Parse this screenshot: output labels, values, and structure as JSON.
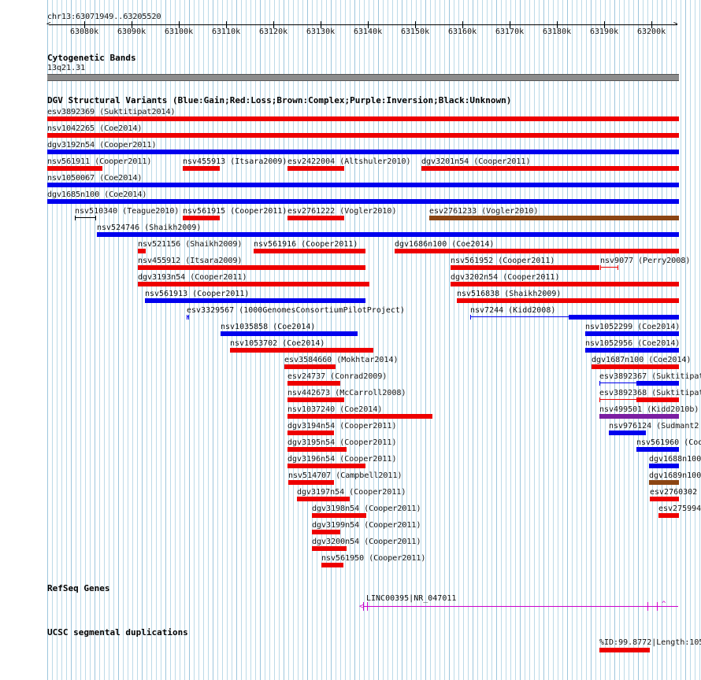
{
  "position_label": "chr13:63071949..63205520",
  "ruler": {
    "ticks": [
      "63080k",
      "63090k",
      "63100k",
      "63110k",
      "63120k",
      "63130k",
      "63140k",
      "63150k",
      "63160k",
      "63170k",
      "63180k",
      "63190k",
      "63200k"
    ],
    "start_bp": 63071949,
    "end_bp": 63205520
  },
  "cytobands": {
    "title": "Cytogenetic Bands",
    "band": "13q21.31"
  },
  "dgv": {
    "title": "DGV Structural Variants (Blue:Gain;Red:Loss;Brown:Complex;Purple:Inversion;Black:Unknown)",
    "colors": {
      "gain": "#0000ee",
      "loss": "#ee0000",
      "complex": "#8b4513",
      "inversion": "#7b1fa2",
      "unknown": "#000000"
    },
    "features": [
      {
        "label": "esv3892369 (Suktitipat2014)",
        "type": "loss"
      },
      {
        "label": "nsv1042265 (Coe2014)",
        "type": "loss"
      },
      {
        "label": "dgv3192n54 (Cooper2011)",
        "type": "gain"
      },
      {
        "label": "nsv561911 (Cooper2011)",
        "type": "loss"
      },
      {
        "label": "nsv455913 (Itsara2009)",
        "type": "loss"
      },
      {
        "label": "esv2422004 (Altshuler2010)",
        "type": "loss"
      },
      {
        "label": "dgv3201n54 (Cooper2011)",
        "type": "loss"
      },
      {
        "label": "nsv1050067 (Coe2014)",
        "type": "gain"
      },
      {
        "label": "dgv1685n100 (Coe2014)",
        "type": "gain"
      },
      {
        "label": "nsv510340 (Teague2010)",
        "type": "unknown"
      },
      {
        "label": "nsv561915 (Cooper2011)",
        "type": "loss"
      },
      {
        "label": "esv2761222 (Vogler2010)",
        "type": "loss"
      },
      {
        "label": "esv2761233 (Vogler2010)",
        "type": "complex"
      },
      {
        "label": "nsv524746 (Shaikh2009)",
        "type": "gain"
      },
      {
        "label": "nsv521156 (Shaikh2009)",
        "type": "loss"
      },
      {
        "label": "nsv561916 (Cooper2011)",
        "type": "loss"
      },
      {
        "label": "dgv1686n100 (Coe2014)",
        "type": "loss"
      },
      {
        "label": "nsv455912 (Itsara2009)",
        "type": "loss"
      },
      {
        "label": "nsv561952 (Cooper2011)",
        "type": "loss"
      },
      {
        "label": "nsv9077 (Perry2008)",
        "type": "loss"
      },
      {
        "label": "dgv3193n54 (Cooper2011)",
        "type": "loss"
      },
      {
        "label": "dgv3202n54 (Cooper2011)",
        "type": "loss"
      },
      {
        "label": "nsv561913 (Cooper2011)",
        "type": "gain"
      },
      {
        "label": "nsv516838 (Shaikh2009)",
        "type": "loss"
      },
      {
        "label": "esv3329567 (1000GenomesConsortiumPilotProject)",
        "type": "gain"
      },
      {
        "label": "nsv7244 (Kidd2008)",
        "type": "gain"
      },
      {
        "label": "nsv1035858 (Coe2014)",
        "type": "gain"
      },
      {
        "label": "nsv1052299 (Coe2014)",
        "type": "gain"
      },
      {
        "label": "nsv1053702 (Coe2014)",
        "type": "loss"
      },
      {
        "label": "nsv1052956 (Coe2014)",
        "type": "gain"
      },
      {
        "label": "esv3584660 (Mokhtar2014)",
        "type": "loss"
      },
      {
        "label": "dgv1687n100 (Coe2014)",
        "type": "loss"
      },
      {
        "label": "esv24737 (Conrad2009)",
        "type": "loss"
      },
      {
        "label": "esv3892367 (Suktitipat",
        "type": "gain"
      },
      {
        "label": "nsv442673 (McCarroll2008)",
        "type": "loss"
      },
      {
        "label": "esv3892368 (Suktitipat",
        "type": "loss"
      },
      {
        "label": "nsv1037240 (Coe2014)",
        "type": "loss"
      },
      {
        "label": "nsv499501 (Kidd2010b)",
        "type": "inversion"
      },
      {
        "label": "dgv3194n54 (Cooper2011)",
        "type": "loss"
      },
      {
        "label": "nsv976124 (Sudmant2",
        "type": "gain"
      },
      {
        "label": "dgv3195n54 (Cooper2011)",
        "type": "loss"
      },
      {
        "label": "nsv561960 (Coo",
        "type": "gain"
      },
      {
        "label": "dgv3196n54 (Cooper2011)",
        "type": "loss"
      },
      {
        "label": "dgv1688n100",
        "type": "gain"
      },
      {
        "label": "nsv514707 (Campbell2011)",
        "type": "loss"
      },
      {
        "label": "dgv1689n100",
        "type": "complex"
      },
      {
        "label": "dgv3197n54 (Cooper2011)",
        "type": "loss"
      },
      {
        "label": "esv2760302",
        "type": "loss"
      },
      {
        "label": "dgv3198n54 (Cooper2011)",
        "type": "loss"
      },
      {
        "label": "esv275994",
        "type": "loss"
      },
      {
        "label": "dgv3199n54 (Cooper2011)",
        "type": "loss"
      },
      {
        "label": "dgv3200n54 (Cooper2011)",
        "type": "loss"
      },
      {
        "label": "nsv561950 (Cooper2011)",
        "type": "loss"
      }
    ]
  },
  "refseq": {
    "title": "RefSeq Genes",
    "gene_label": "LINC00395|NR_047011",
    "color": "#cc00cc"
  },
  "segdups": {
    "title": "UCSC segmental duplications",
    "label": "%ID:99.8772|Length:105"
  }
}
